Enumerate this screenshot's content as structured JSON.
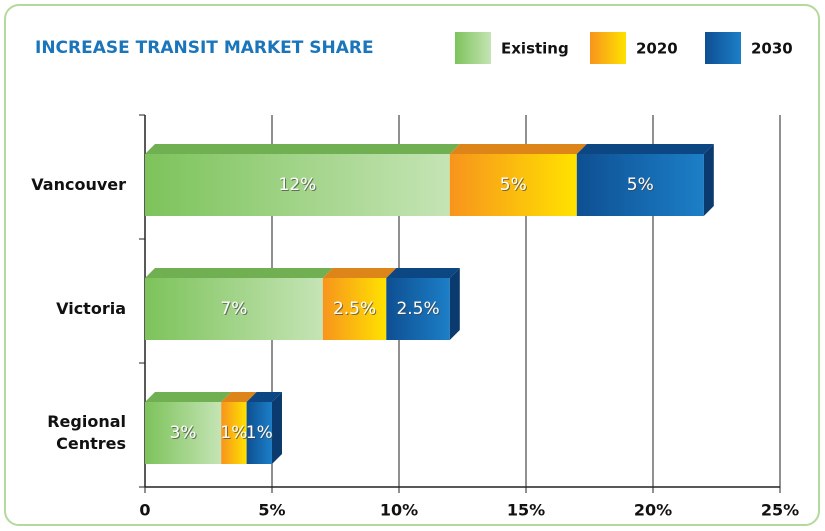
{
  "chart_data": {
    "type": "bar",
    "orientation": "horizontal",
    "stacked": true,
    "title": "INCREASE TRANSIT MARKET SHARE",
    "categories": [
      "Vancouver",
      "Victoria",
      "Regional Centres"
    ],
    "series": [
      {
        "name": "Existing",
        "color": "#7dc35b",
        "values": [
          12,
          7,
          3
        ],
        "value_labels": [
          "12%",
          "7%",
          "3%"
        ]
      },
      {
        "name": "2020",
        "color": "#f7941d",
        "values": [
          5,
          2.5,
          1
        ],
        "value_labels": [
          "5%",
          "2.5%",
          "1%"
        ]
      },
      {
        "name": "2030",
        "color": "#0e4f92",
        "values": [
          5,
          2.5,
          1
        ],
        "value_labels": [
          "5%",
          "2.5%",
          "1%"
        ]
      }
    ],
    "xlim": [
      0,
      25
    ],
    "xticks": [
      0,
      {
        "value": 5,
        "label": "5%"
      },
      {
        "value": 10,
        "label": "10%"
      },
      {
        "value": 15,
        "label": "15%"
      },
      {
        "value": 20,
        "label": "20%"
      },
      {
        "value": 25,
        "label": "25%"
      }
    ],
    "grid": true,
    "legend": "top"
  }
}
